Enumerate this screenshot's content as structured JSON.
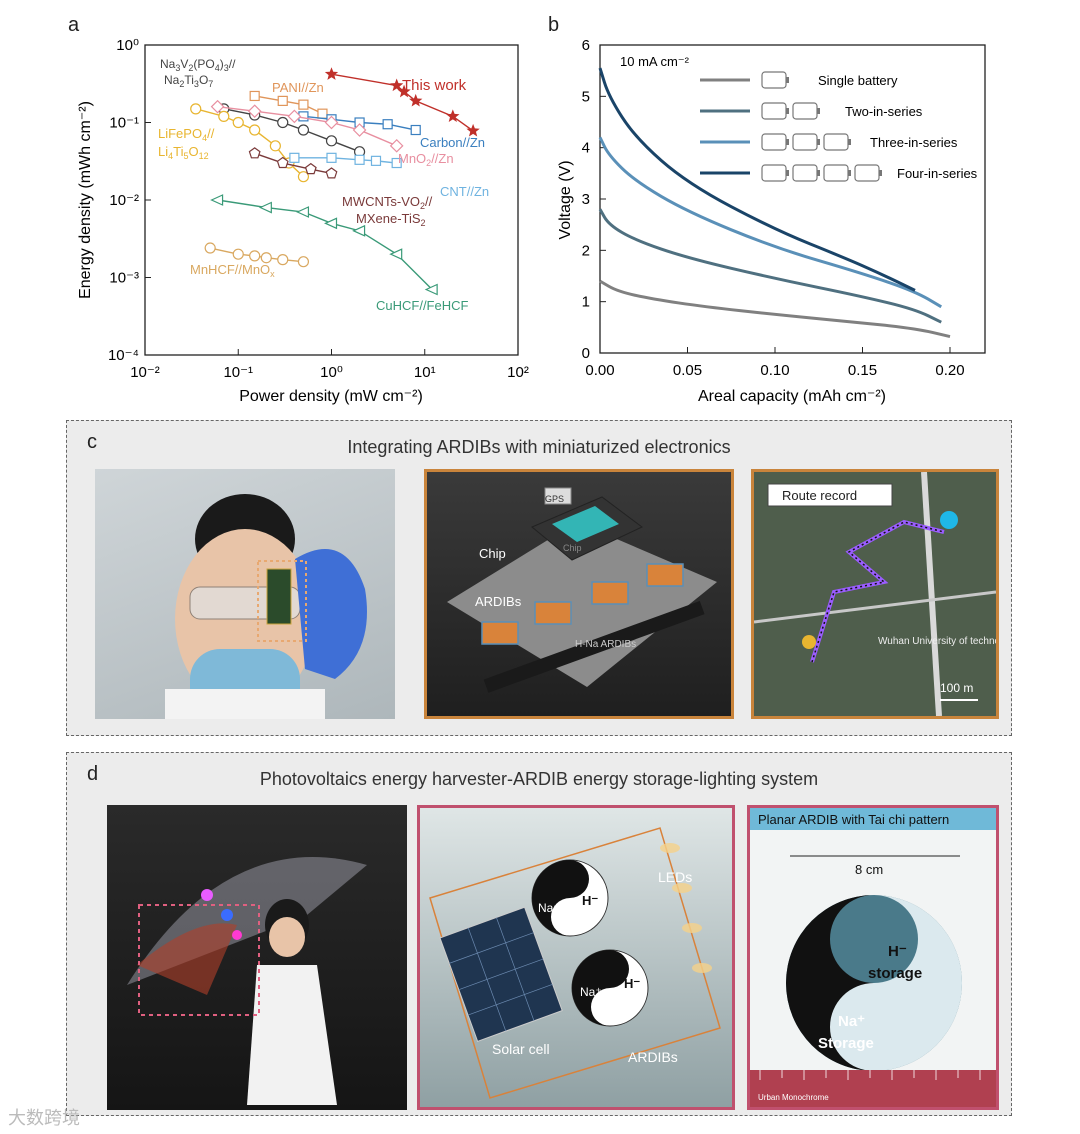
{
  "panels": {
    "a": "a",
    "b": "b",
    "c": "c",
    "d": "d"
  },
  "chart_data": [
    {
      "type": "scatter",
      "panel": "a",
      "xlabel": "Power density (mW cm⁻²)",
      "ylabel": "Energy density (mWh cm⁻²)",
      "xscale": "log",
      "yscale": "log",
      "xlim": [
        0.01,
        100
      ],
      "ylim": [
        0.0001,
        1
      ],
      "x_ticks": [
        "10⁻²",
        "10⁻¹",
        "10⁰",
        "10¹",
        "10²"
      ],
      "y_ticks": [
        "10⁰",
        "10⁻¹",
        "10⁻²",
        "10⁻³",
        "10⁻⁴"
      ],
      "series": [
        {
          "name": "This work",
          "color": "#c0302a",
          "marker": "star",
          "x": [
            1.0,
            5,
            6,
            8,
            20,
            33
          ],
          "y": [
            0.42,
            0.3,
            0.25,
            0.19,
            0.12,
            0.078
          ]
        },
        {
          "name": "Na₃V₂(PO₄)₃//Na₂Ti₃O₇",
          "color": "#444444",
          "marker": "circle-bar",
          "x": [
            0.07,
            0.15,
            0.3,
            0.5,
            1.0,
            2
          ],
          "y": [
            0.15,
            0.125,
            0.1,
            0.08,
            0.058,
            0.042
          ]
        },
        {
          "name": "PANI//Zn",
          "color": "#e0955a",
          "marker": "square-x",
          "x": [
            0.15,
            0.3,
            0.5,
            0.8
          ],
          "y": [
            0.22,
            0.19,
            0.17,
            0.13
          ]
        },
        {
          "name": "Carbon//Zn",
          "color": "#3a7fbf",
          "marker": "square-bar",
          "x": [
            0.5,
            1.0,
            2,
            4,
            8
          ],
          "y": [
            0.12,
            0.11,
            0.1,
            0.095,
            0.08
          ]
        },
        {
          "name": "MnO₂//Zn",
          "color": "#e88fa0",
          "marker": "diamond",
          "x": [
            0.06,
            0.15,
            0.4,
            1.0,
            2,
            5
          ],
          "y": [
            0.16,
            0.14,
            0.12,
            0.1,
            0.08,
            0.05
          ]
        },
        {
          "name": "LiFePO₄//Li₄Ti₅O₁₂",
          "color": "#e8b530",
          "marker": "circle",
          "x": [
            0.035,
            0.07,
            0.1,
            0.15,
            0.25,
            0.35,
            0.5
          ],
          "y": [
            0.15,
            0.12,
            0.1,
            0.08,
            0.05,
            0.03,
            0.02
          ]
        },
        {
          "name": "CNT//Zn",
          "color": "#6fb3e0",
          "marker": "square-x",
          "x": [
            0.4,
            1.0,
            2,
            3,
            5
          ],
          "y": [
            0.035,
            0.035,
            0.033,
            0.032,
            0.03
          ]
        },
        {
          "name": "MWCNTs-VO₂//MXene-TiS₂",
          "color": "#7a3a3a",
          "marker": "pentagon",
          "x": [
            0.15,
            0.3,
            0.6,
            1.0
          ],
          "y": [
            0.04,
            0.03,
            0.025,
            0.022
          ]
        },
        {
          "name": "CuHCF//FeHCF",
          "color": "#3a9a78",
          "marker": "triangle-left",
          "x": [
            0.06,
            0.2,
            0.5,
            1.0,
            2,
            5,
            12
          ],
          "y": [
            0.01,
            0.008,
            0.007,
            0.005,
            0.004,
            0.002,
            0.0007
          ]
        },
        {
          "name": "MnHCF//MnOₓ",
          "color": "#d9a860",
          "marker": "circle-plus",
          "x": [
            0.05,
            0.1,
            0.15,
            0.2,
            0.3,
            0.5
          ],
          "y": [
            0.0024,
            0.002,
            0.0019,
            0.0018,
            0.0017,
            0.0016
          ]
        }
      ]
    },
    {
      "type": "line",
      "panel": "b",
      "xlabel": "Areal capacity (mAh cm⁻²)",
      "ylabel": "Voltage (V)",
      "xlim": [
        0,
        0.22
      ],
      "ylim": [
        0,
        6
      ],
      "x_ticks": [
        "0.00",
        "0.05",
        "0.10",
        "0.15",
        "0.20"
      ],
      "y_ticks": [
        "0",
        "1",
        "2",
        "3",
        "4",
        "5",
        "6"
      ],
      "annotation": "10 mA cm⁻²",
      "series": [
        {
          "name": "Single battery",
          "color": "#808080",
          "cells": 1,
          "x": [
            0,
            0.01,
            0.03,
            0.06,
            0.1,
            0.14,
            0.18,
            0.2
          ],
          "y": [
            1.4,
            1.2,
            1.05,
            0.9,
            0.75,
            0.62,
            0.48,
            0.32
          ]
        },
        {
          "name": "Two-in-series",
          "color": "#4f7080",
          "cells": 2,
          "x": [
            0,
            0.005,
            0.02,
            0.05,
            0.1,
            0.15,
            0.18,
            0.195
          ],
          "y": [
            2.8,
            2.5,
            2.2,
            1.85,
            1.45,
            1.1,
            0.85,
            0.6
          ]
        },
        {
          "name": "Three-in-series",
          "color": "#5a90b8",
          "cells": 3,
          "x": [
            0,
            0.005,
            0.02,
            0.05,
            0.1,
            0.15,
            0.18,
            0.195
          ],
          "y": [
            4.2,
            3.85,
            3.35,
            2.75,
            2.05,
            1.55,
            1.2,
            0.9
          ]
        },
        {
          "name": "Four-in-series",
          "color": "#1a4468",
          "cells": 4,
          "x": [
            0,
            0.005,
            0.02,
            0.05,
            0.1,
            0.14,
            0.16,
            0.18
          ],
          "y": [
            5.55,
            5.0,
            4.2,
            3.3,
            2.4,
            1.85,
            1.55,
            1.22
          ]
        }
      ]
    }
  ],
  "panel_c": {
    "title": "Integrating ARDIBs with miniaturized electronics",
    "labels": {
      "gps": "GPS",
      "chip": "Chip",
      "chip_die": "Chip",
      "ardibs": "ARDIBs",
      "hna": "H-Na ARDIBs"
    },
    "map": {
      "route_label": "Route record",
      "place": "Wuhan University of technology",
      "scale": "100 m"
    }
  },
  "panel_d": {
    "title": "Photovoltaics energy harvester-ARDIB energy storage-lighting system",
    "labels": {
      "na": "Na⁺",
      "h": "H⁻",
      "leds": "LEDs",
      "solar": "Solar cell",
      "ardibs": "ARDIBs"
    },
    "taichi": {
      "title": "Planar ARDIB with Tai chi pattern",
      "width": "8 cm",
      "h_label1": "H⁻",
      "h_label2": "storage",
      "na_label1": "Na⁺",
      "na_label2": "Storage",
      "ruler": "Urban Monochrome"
    }
  },
  "watermark": "大数跨境"
}
